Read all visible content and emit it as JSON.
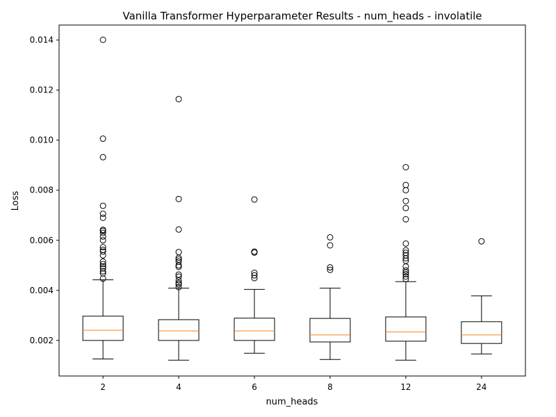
{
  "chart_data": {
    "type": "box",
    "title": "Vanilla Transformer Hyperparameter Results - num_heads - involatile",
    "xlabel": "num_heads",
    "ylabel": "Loss",
    "categories": [
      "2",
      "4",
      "6",
      "8",
      "12",
      "24"
    ],
    "ylim": [
      0.00058,
      0.0146
    ],
    "yticks": [
      0.002,
      0.004,
      0.006,
      0.008,
      0.01,
      0.012,
      0.014
    ],
    "ytick_labels": [
      "0.002",
      "0.004",
      "0.006",
      "0.008",
      "0.010",
      "0.012",
      "0.014"
    ],
    "grid": false,
    "box_color": "#000000",
    "median_color": "#ff7f0e",
    "boxes": [
      {
        "label": "2",
        "whisker_low": 0.00126,
        "q1": 0.002,
        "median": 0.00241,
        "q3": 0.00297,
        "whisker_high": 0.00442,
        "outliers": [
          0.01401,
          0.01006,
          0.00932,
          0.00738,
          0.00706,
          0.0069,
          0.00642,
          0.00638,
          0.0063,
          0.00615,
          0.006,
          0.00573,
          0.00562,
          0.00555,
          0.0054,
          0.00515,
          0.00505,
          0.00496,
          0.00488,
          0.00476,
          0.00468,
          0.00447
        ]
      },
      {
        "label": "4",
        "whisker_low": 0.00121,
        "q1": 0.002,
        "median": 0.00238,
        "q3": 0.00283,
        "whisker_high": 0.00409,
        "outliers": [
          0.01164,
          0.00765,
          0.00643,
          0.00553,
          0.0053,
          0.00523,
          0.00515,
          0.005,
          0.00494,
          0.00463,
          0.00455,
          0.0044,
          0.0043,
          0.00424,
          0.00413
        ]
      },
      {
        "label": "6",
        "whisker_low": 0.00149,
        "q1": 0.002,
        "median": 0.00238,
        "q3": 0.00289,
        "whisker_high": 0.00404,
        "outliers": [
          0.00763,
          0.00555,
          0.00551,
          0.0047,
          0.0046,
          0.00449
        ]
      },
      {
        "label": "8",
        "whisker_low": 0.00124,
        "q1": 0.00194,
        "median": 0.00222,
        "q3": 0.00288,
        "whisker_high": 0.00409,
        "outliers": [
          0.00612,
          0.0058,
          0.00492,
          0.00482
        ]
      },
      {
        "label": "12",
        "whisker_low": 0.00121,
        "q1": 0.00197,
        "median": 0.00234,
        "q3": 0.00294,
        "whisker_high": 0.00435,
        "outliers": [
          0.00892,
          0.00821,
          0.008,
          0.00757,
          0.00729,
          0.00684,
          0.00587,
          0.0056,
          0.0055,
          0.0054,
          0.00528,
          0.00518,
          0.00495,
          0.0048,
          0.00472,
          0.00465,
          0.00455,
          0.00445
        ]
      },
      {
        "label": "24",
        "whisker_low": 0.00146,
        "q1": 0.00188,
        "median": 0.00222,
        "q3": 0.00275,
        "whisker_high": 0.00378,
        "outliers": [
          0.00596
        ]
      }
    ]
  }
}
